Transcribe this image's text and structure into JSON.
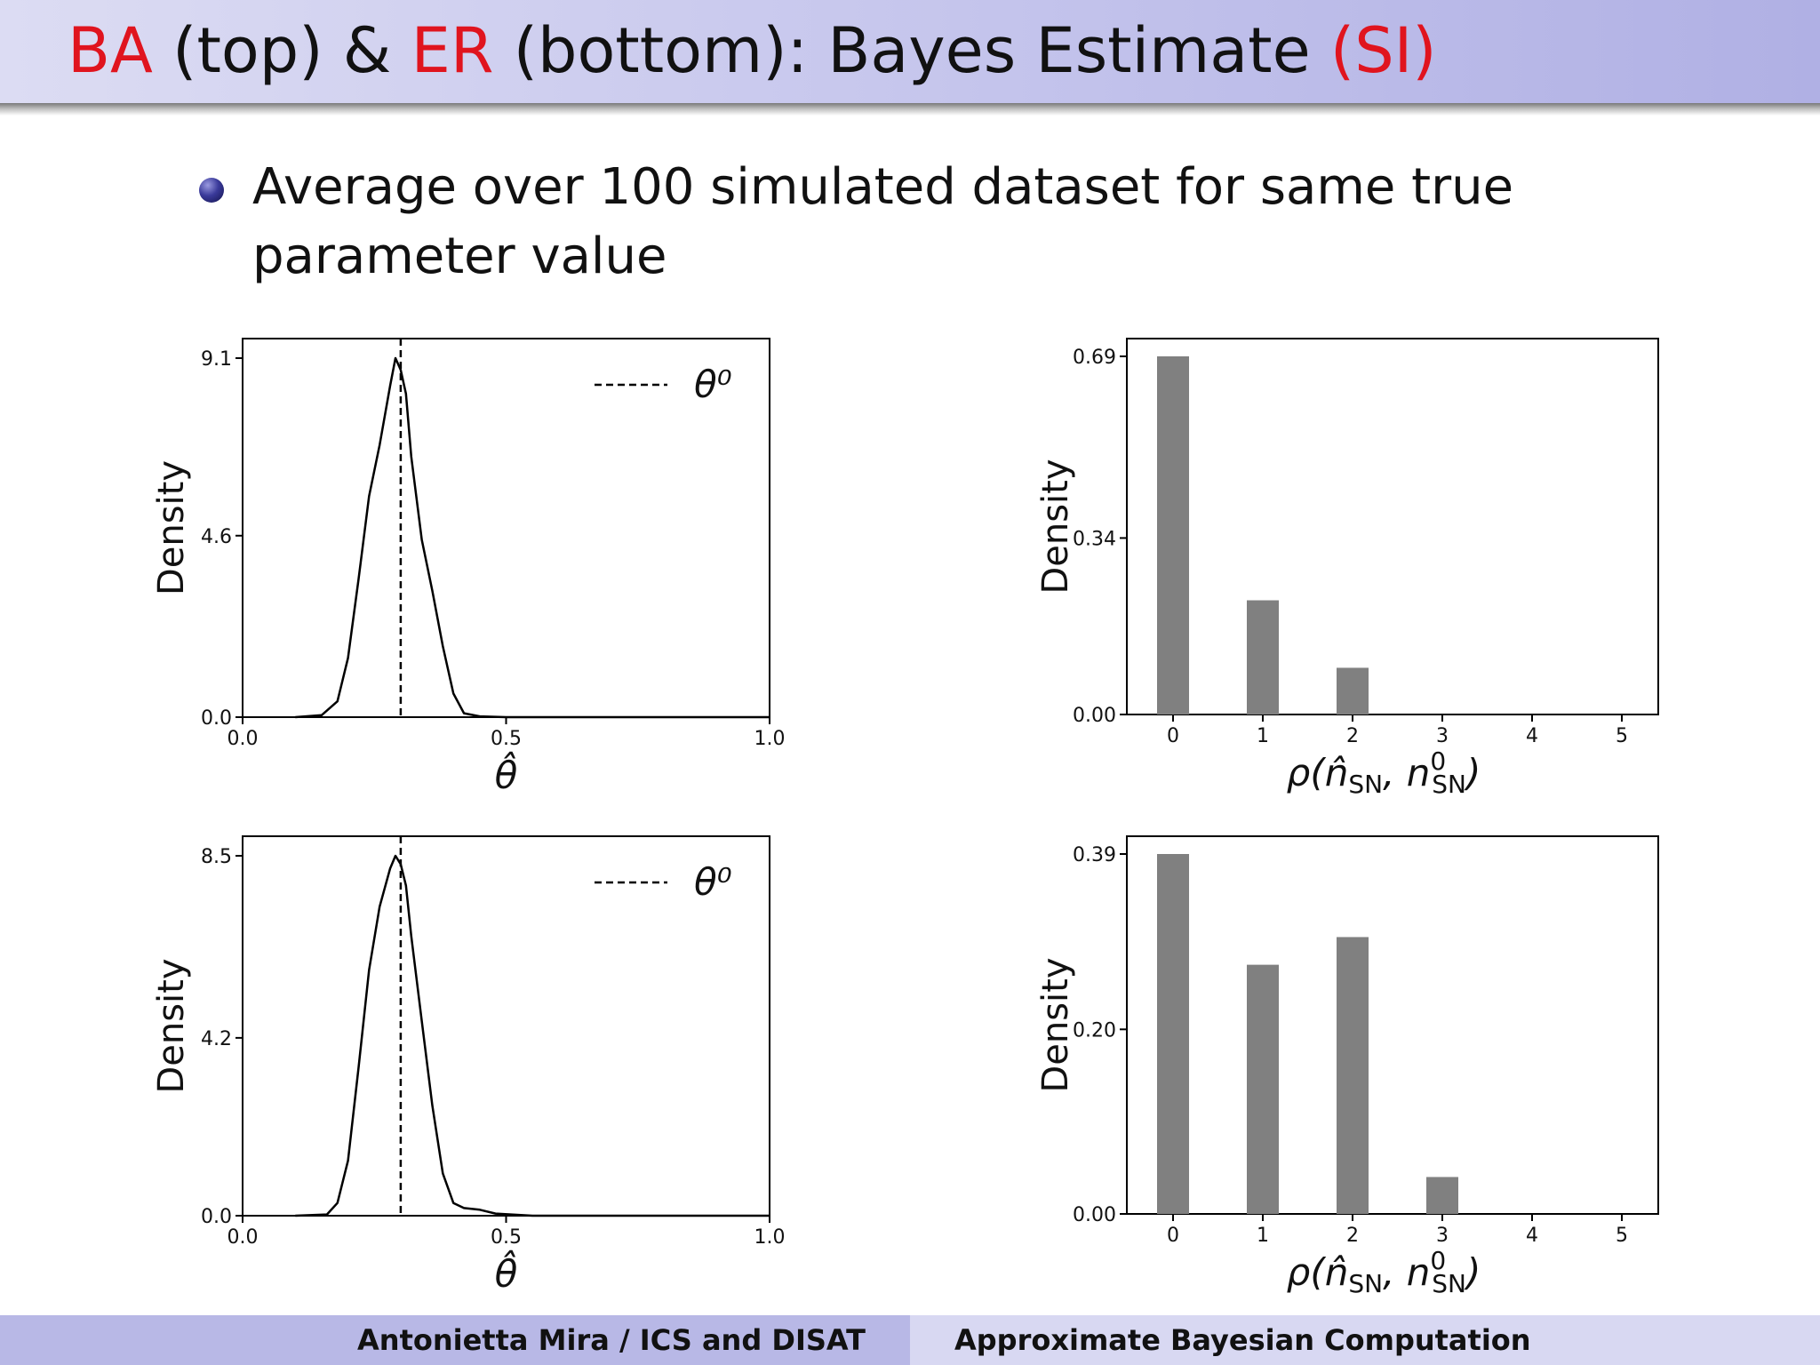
{
  "title": {
    "part1": "BA",
    "part2": " (top) & ",
    "part3": "ER",
    "part4": " (bottom): Bayes Estimate ",
    "part5": "(SI)"
  },
  "bullet": {
    "text": "Average over 100 simulated dataset for same true parameter value"
  },
  "footer": {
    "left": "Antonietta Mira / ICS and DISAT",
    "right": "Approximate Bayesian Computation"
  },
  "colors": {
    "accent_red": "#e0141e",
    "bar_gray": "#808080",
    "footer_left": "#b8b8e6",
    "footer_right": "#d8d8f2"
  },
  "chart_data": [
    {
      "type": "line",
      "ylabel": "Density",
      "xlabel": "θ̂",
      "legend": "θ⁰",
      "legend_position": "top-right",
      "xlim": [
        0,
        1
      ],
      "ylim": [
        0,
        9.1
      ],
      "xticks": [
        "0.0",
        "0.5",
        "1.0"
      ],
      "yticks": [
        "0.0",
        "4.6",
        "9.1"
      ],
      "ref_line_x": 0.3,
      "x": [
        0.1,
        0.15,
        0.18,
        0.2,
        0.22,
        0.24,
        0.26,
        0.28,
        0.29,
        0.3,
        0.31,
        0.32,
        0.34,
        0.36,
        0.38,
        0.4,
        0.42,
        0.45,
        0.5,
        0.6,
        0.8,
        1.0
      ],
      "y": [
        0.0,
        0.05,
        0.4,
        1.5,
        3.5,
        5.6,
        6.9,
        8.4,
        9.1,
        8.8,
        8.2,
        6.6,
        4.5,
        3.2,
        1.8,
        0.6,
        0.1,
        0.02,
        0.0,
        0.0,
        0.0,
        0.0
      ]
    },
    {
      "type": "bar",
      "ylabel": "Density",
      "xlabel": "ρ(n̂SN, n0SN)",
      "categories": [
        "0",
        "1",
        "2",
        "3",
        "4",
        "5"
      ],
      "values": [
        0.69,
        0.22,
        0.09,
        0,
        0,
        0
      ],
      "ylim": [
        0,
        0.72
      ],
      "yticks": [
        "0.00",
        "0.34",
        "0.69"
      ],
      "ytick_values": [
        0,
        0.34,
        0.69
      ]
    },
    {
      "type": "line",
      "ylabel": "Density",
      "xlabel": "θ̂",
      "legend": "θ⁰",
      "legend_position": "top-right",
      "xlim": [
        0,
        1
      ],
      "ylim": [
        0,
        8.5
      ],
      "xticks": [
        "0.0",
        "0.5",
        "1.0"
      ],
      "yticks": [
        "0.0",
        "4.2",
        "8.5"
      ],
      "ref_line_x": 0.3,
      "x": [
        0.1,
        0.16,
        0.18,
        0.2,
        0.22,
        0.24,
        0.26,
        0.28,
        0.29,
        0.3,
        0.31,
        0.32,
        0.34,
        0.36,
        0.38,
        0.4,
        0.42,
        0.45,
        0.48,
        0.55,
        0.8,
        1.0
      ],
      "y": [
        0.0,
        0.03,
        0.3,
        1.3,
        3.5,
        5.8,
        7.3,
        8.2,
        8.5,
        8.3,
        7.8,
        6.6,
        4.6,
        2.6,
        1.0,
        0.3,
        0.18,
        0.14,
        0.05,
        0.0,
        0.0,
        0.0
      ]
    },
    {
      "type": "bar",
      "ylabel": "Density",
      "xlabel": "ρ(n̂SN, n0SN)",
      "categories": [
        "0",
        "1",
        "2",
        "3",
        "4",
        "5"
      ],
      "values": [
        0.39,
        0.27,
        0.3,
        0.04,
        0,
        0
      ],
      "ylim": [
        0,
        0.41
      ],
      "yticks": [
        "0.00",
        "0.20",
        "0.39"
      ],
      "ytick_values": [
        0,
        0.2,
        0.39
      ]
    }
  ]
}
